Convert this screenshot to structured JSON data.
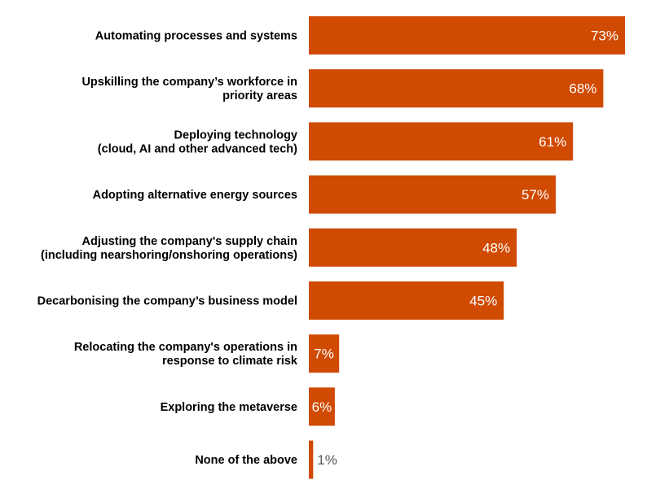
{
  "chart_data": {
    "type": "bar",
    "orientation": "horizontal",
    "categories": [
      [
        "Automating processes and systems"
      ],
      [
        "Upskilling the company’s workforce in",
        "priority areas"
      ],
      [
        "Deploying technology",
        "(cloud, AI and other advanced tech)"
      ],
      [
        "Adopting alternative energy sources"
      ],
      [
        "Adjusting the company's supply chain",
        "(including nearshoring/onshoring operations)"
      ],
      [
        "Decarbonising the company’s business model"
      ],
      [
        "Relocating the company's operations in",
        "response to climate risk"
      ],
      [
        "Exploring the metaverse"
      ],
      [
        "None of the above"
      ]
    ],
    "values": [
      73,
      68,
      61,
      57,
      48,
      45,
      7,
      6,
      1
    ],
    "value_labels": [
      "73%",
      "68%",
      "61%",
      "57%",
      "48%",
      "45%",
      "7%",
      "6%",
      "1%"
    ],
    "xlim": [
      0,
      100
    ],
    "grid": false,
    "legend": "none",
    "colors": {
      "bar": "#D04A02",
      "label_inside": "#FFFFFF",
      "label_outside": "#595959",
      "category_text": "#000000"
    }
  }
}
